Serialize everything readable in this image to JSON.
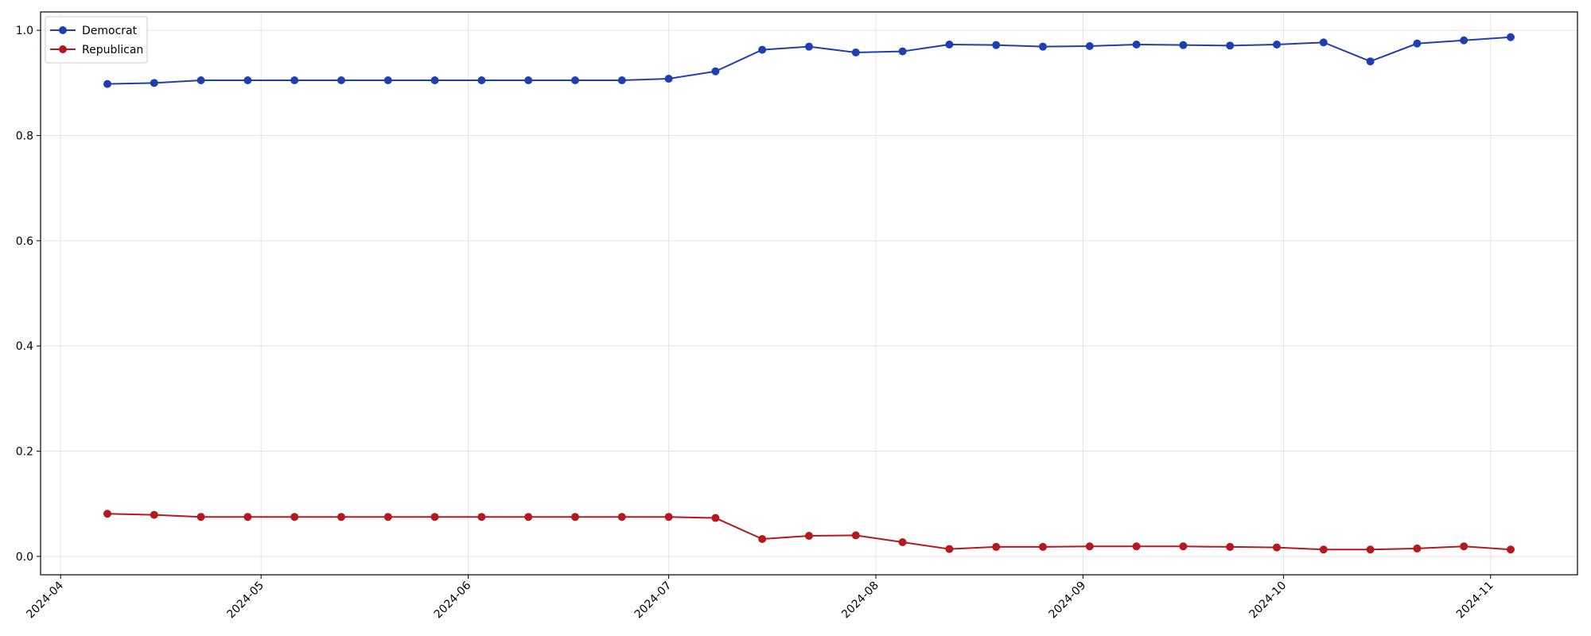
{
  "chart_data": {
    "type": "line",
    "x": [
      "2024-04-08",
      "2024-04-15",
      "2024-04-22",
      "2024-04-29",
      "2024-05-06",
      "2024-05-13",
      "2024-05-20",
      "2024-05-27",
      "2024-06-03",
      "2024-06-10",
      "2024-06-17",
      "2024-06-24",
      "2024-07-01",
      "2024-07-08",
      "2024-07-15",
      "2024-07-22",
      "2024-07-29",
      "2024-08-05",
      "2024-08-12",
      "2024-08-19",
      "2024-08-26",
      "2024-09-02",
      "2024-09-09",
      "2024-09-16",
      "2024-09-23",
      "2024-09-30",
      "2024-10-07",
      "2024-10-14",
      "2024-10-21",
      "2024-10-28",
      "2024-11-04"
    ],
    "series": [
      {
        "name": "Democrat",
        "color": "#1f3fb0",
        "values": [
          0.898,
          0.9,
          0.905,
          0.905,
          0.905,
          0.905,
          0.905,
          0.905,
          0.905,
          0.905,
          0.905,
          0.905,
          0.908,
          0.922,
          0.963,
          0.969,
          0.958,
          0.96,
          0.973,
          0.972,
          0.969,
          0.97,
          0.973,
          0.972,
          0.971,
          0.973,
          0.977,
          0.941,
          0.975,
          0.981,
          0.987
        ]
      },
      {
        "name": "Republican",
        "color": "#b5181e",
        "values": [
          0.081,
          0.079,
          0.075,
          0.075,
          0.075,
          0.075,
          0.075,
          0.075,
          0.075,
          0.075,
          0.075,
          0.075,
          0.075,
          0.073,
          0.033,
          0.039,
          0.04,
          0.027,
          0.014,
          0.018,
          0.018,
          0.019,
          0.019,
          0.019,
          0.018,
          0.017,
          0.013,
          0.013,
          0.015,
          0.019,
          0.013
        ]
      }
    ],
    "xlim": [
      "2024-03-29",
      "2024-11-14"
    ],
    "xticks": [
      "2024-04",
      "2024-05",
      "2024-06",
      "2024-07",
      "2024-08",
      "2024-09",
      "2024-10",
      "2024-11"
    ],
    "ylim": [
      -0.035,
      1.035
    ],
    "yticks": [
      {
        "value": 0,
        "label": "0.0"
      },
      0.2,
      0.4,
      0.6,
      0.8,
      {
        "value": 1,
        "label": "1.0"
      }
    ],
    "grid": true,
    "legend": "upper left"
  }
}
